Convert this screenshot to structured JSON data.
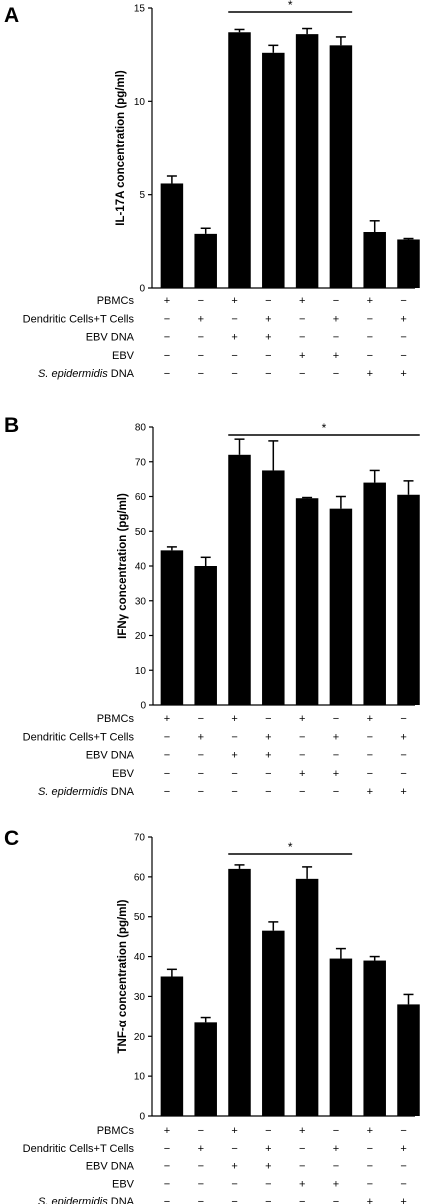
{
  "chart_data": [
    {
      "type": "bar",
      "panel": "A",
      "ylabel": "IL-17A concentration (pg/ml)",
      "ylim": [
        0,
        15
      ],
      "yticks": [
        0,
        5,
        10,
        15
      ],
      "values": [
        5.6,
        2.9,
        13.7,
        12.6,
        13.6,
        13.0,
        3.0,
        2.6
      ],
      "errors": [
        0.4,
        0.3,
        0.15,
        0.4,
        0.3,
        0.45,
        0.6,
        0.05
      ],
      "significance": {
        "from": 2,
        "to": 5,
        "label": "*"
      },
      "conditions": [
        {
          "label": "PBMCs",
          "label_italic": "",
          "signs": [
            "+",
            "−",
            "+",
            "−",
            "+",
            "−",
            "+",
            "−"
          ]
        },
        {
          "label": "Dendritic Cells+T Cells",
          "label_italic": "",
          "signs": [
            "−",
            "+",
            "−",
            "+",
            "−",
            "+",
            "−",
            "+"
          ]
        },
        {
          "label": "EBV DNA",
          "label_italic": "",
          "signs": [
            "−",
            "−",
            "+",
            "+",
            "−",
            "−",
            "−",
            "−"
          ]
        },
        {
          "label": "EBV",
          "label_italic": "",
          "signs": [
            "−",
            "−",
            "−",
            "−",
            "+",
            "+",
            "−",
            "−"
          ]
        },
        {
          "label": " DNA",
          "label_italic": "S. epidermidis",
          "signs": [
            "−",
            "−",
            "−",
            "−",
            "−",
            "−",
            "+",
            "+"
          ]
        }
      ]
    },
    {
      "type": "bar",
      "panel": "B",
      "ylabel": "IFNγ concentration (pg/ml)",
      "ylim": [
        0,
        80
      ],
      "yticks": [
        0,
        10,
        20,
        30,
        40,
        50,
        60,
        70,
        80
      ],
      "values": [
        44.5,
        40.0,
        72.0,
        67.5,
        59.5,
        56.5,
        64.0,
        60.5
      ],
      "errors": [
        1.0,
        2.5,
        4.5,
        8.5,
        0.2,
        3.5,
        3.5,
        4.0
      ],
      "significance": {
        "from": 2,
        "to": 7,
        "label": "*"
      },
      "conditions": [
        {
          "label": "PBMCs",
          "label_italic": "",
          "signs": [
            "+",
            "−",
            "+",
            "−",
            "+",
            "−",
            "+",
            "−"
          ]
        },
        {
          "label": "Dendritic Cells+T Cells",
          "label_italic": "",
          "signs": [
            "−",
            "+",
            "−",
            "+",
            "−",
            "+",
            "−",
            "+"
          ]
        },
        {
          "label": "EBV DNA",
          "label_italic": "",
          "signs": [
            "−",
            "−",
            "+",
            "+",
            "−",
            "−",
            "−",
            "−"
          ]
        },
        {
          "label": "EBV",
          "label_italic": "",
          "signs": [
            "−",
            "−",
            "−",
            "−",
            "+",
            "+",
            "−",
            "−"
          ]
        },
        {
          "label": " DNA",
          "label_italic": "S. epidermidis",
          "signs": [
            "−",
            "−",
            "−",
            "−",
            "−",
            "−",
            "+",
            "+"
          ]
        }
      ]
    },
    {
      "type": "bar",
      "panel": "C",
      "ylabel": "TNF-α concentration (pg/ml)",
      "ylim": [
        0,
        70
      ],
      "yticks": [
        0,
        10,
        20,
        30,
        40,
        50,
        60,
        70
      ],
      "values": [
        35.0,
        23.5,
        62.0,
        46.5,
        59.5,
        39.5,
        39.0,
        28.0
      ],
      "errors": [
        1.8,
        1.2,
        1.0,
        2.2,
        3.0,
        2.5,
        1.0,
        2.5
      ],
      "significance": {
        "from": 2,
        "to": 5,
        "label": "*"
      },
      "conditions": [
        {
          "label": "PBMCs",
          "label_italic": "",
          "signs": [
            "+",
            "−",
            "+",
            "−",
            "+",
            "−",
            "+",
            "−"
          ]
        },
        {
          "label": "Dendritic Cells+T Cells",
          "label_italic": "",
          "signs": [
            "−",
            "+",
            "−",
            "+",
            "−",
            "+",
            "−",
            "+"
          ]
        },
        {
          "label": "EBV DNA",
          "label_italic": "",
          "signs": [
            "−",
            "−",
            "+",
            "+",
            "−",
            "−",
            "−",
            "−"
          ]
        },
        {
          "label": "EBV",
          "label_italic": "",
          "signs": [
            "−",
            "−",
            "−",
            "−",
            "+",
            "+",
            "−",
            "−"
          ]
        },
        {
          "label": " DNA",
          "label_italic": "S. epidermidis",
          "signs": [
            "−",
            "−",
            "−",
            "−",
            "−",
            "−",
            "+",
            "+"
          ]
        }
      ]
    }
  ],
  "colors": {
    "bar": "#000000",
    "axis": "#000000"
  }
}
